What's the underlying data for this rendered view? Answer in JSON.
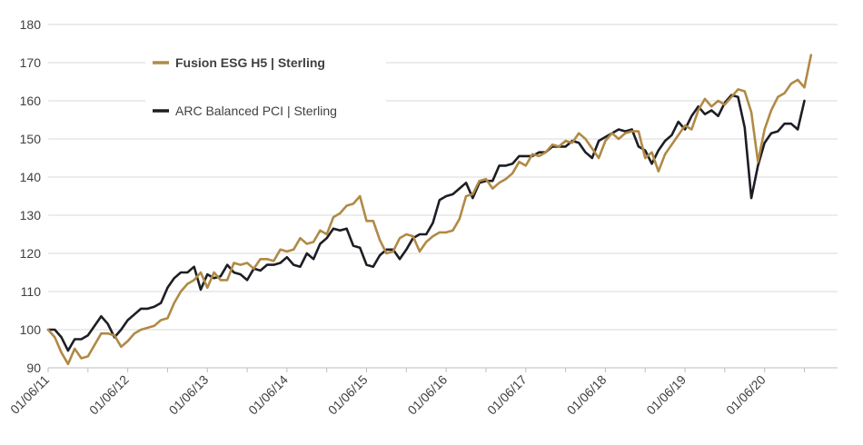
{
  "chart_data": {
    "type": "line",
    "title": "",
    "xlabel": "",
    "ylabel": "",
    "ylim": [
      90,
      180
    ],
    "yticks": [
      90,
      100,
      110,
      120,
      130,
      140,
      150,
      160,
      170,
      180
    ],
    "xlim": [
      0,
      119
    ],
    "xticks": [
      {
        "index": 0,
        "label": "01/06/11"
      },
      {
        "index": 12,
        "label": "01/06/12"
      },
      {
        "index": 24,
        "label": "01/06/13"
      },
      {
        "index": 36,
        "label": "01/06/14"
      },
      {
        "index": 48,
        "label": "01/06/15"
      },
      {
        "index": 60,
        "label": "01/06/16"
      },
      {
        "index": 72,
        "label": "01/06/17"
      },
      {
        "index": 84,
        "label": "01/06/18"
      },
      {
        "index": 96,
        "label": "01/06/19"
      },
      {
        "index": 108,
        "label": "01/06/20"
      }
    ],
    "grid": "horizontal",
    "legend_position": "top-left",
    "series": [
      {
        "name": "Fusion ESG H5 | Sterling",
        "color": "#b08a45",
        "values": [
          100,
          98,
          94,
          91,
          95,
          92.5,
          93,
          96,
          99,
          99,
          98.5,
          95.5,
          97,
          99,
          100,
          100.5,
          101,
          102.5,
          103,
          107,
          110,
          112,
          113,
          115,
          111,
          115,
          113,
          113,
          117.5,
          117,
          117.5,
          116,
          118.5,
          118.5,
          118,
          121,
          120.5,
          121,
          124,
          122.5,
          123,
          126,
          125,
          129.5,
          130.5,
          132.5,
          133,
          135,
          128.5,
          128.5,
          123.5,
          120,
          120.5,
          124,
          125,
          124.5,
          120.5,
          123,
          124.5,
          125.5,
          125.5,
          126,
          129,
          135,
          135.5,
          139,
          139.5,
          137,
          138.5,
          139.5,
          141,
          144,
          143,
          146,
          145.5,
          146.5,
          148.5,
          148,
          149.5,
          149,
          151.5,
          150,
          147.5,
          145,
          149.5,
          151.5,
          150,
          151.5,
          152,
          152,
          145,
          146.5,
          141.5,
          146,
          148.5,
          151,
          153.5,
          152.5,
          157.5,
          160.5,
          158.5,
          160,
          159,
          161,
          163,
          162.5,
          157,
          144,
          152.5,
          157.5,
          161,
          162,
          164.5,
          165.5,
          163.5,
          172
        ]
      },
      {
        "name": "ARC Balanced PCI | Sterling",
        "color": "#1d1d24",
        "values": [
          100,
          100,
          98,
          94.5,
          97.5,
          97.5,
          98.5,
          101,
          103.5,
          101.5,
          98,
          100,
          102.5,
          104,
          105.5,
          105.5,
          106,
          107,
          111,
          113.5,
          115,
          115,
          116.5,
          110.5,
          114.5,
          113.5,
          114,
          117,
          115,
          114.5,
          113,
          116,
          115.5,
          117,
          117,
          117.5,
          119,
          117,
          116.5,
          120,
          118.5,
          122.5,
          124,
          126.5,
          126,
          126.5,
          122,
          121.5,
          117,
          116.5,
          119.5,
          121,
          121,
          118.5,
          121,
          124,
          125,
          125,
          128,
          134,
          135,
          135.5,
          137,
          138.5,
          134.5,
          138.5,
          139,
          139,
          143,
          143,
          143.5,
          145.5,
          145.5,
          145.5,
          146.5,
          146.5,
          148,
          148,
          148,
          149.5,
          149,
          146.5,
          145,
          149.5,
          150.5,
          151.5,
          152.5,
          152,
          152.5,
          148,
          147,
          143.5,
          147,
          149.5,
          151,
          154.5,
          152.5,
          156,
          158.5,
          156.5,
          157.5,
          156,
          159.5,
          161.5,
          161,
          153,
          134.5,
          143,
          149,
          151.5,
          152,
          154,
          154,
          152.5,
          160
        ]
      }
    ]
  }
}
